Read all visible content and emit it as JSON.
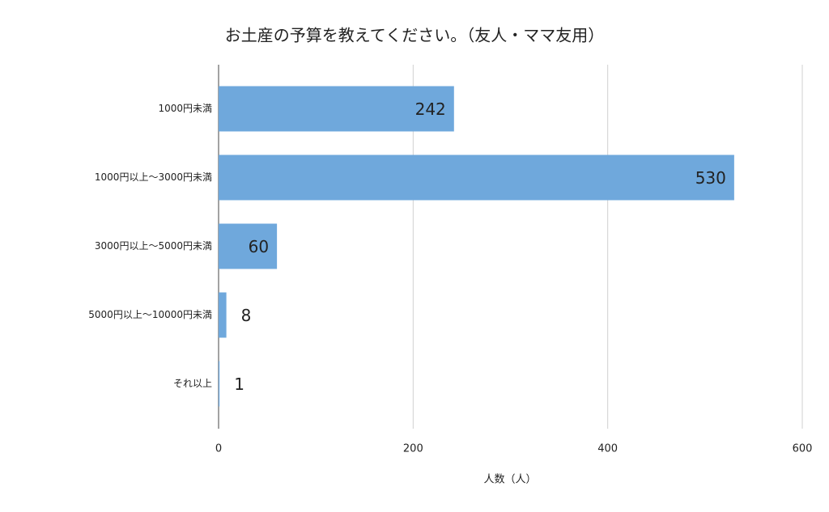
{
  "chart_data": {
    "type": "bar",
    "orientation": "horizontal",
    "title": "お土産の予算を教えてください。（友人・ママ友用）",
    "x_label": "人数（人）",
    "categories": [
      "1000円未満",
      "1000円以上〜3000円未満",
      "3000円以上〜5000円未満",
      "5000円以上〜10000円未満",
      "それ以上"
    ],
    "values": [
      242,
      530,
      60,
      8,
      1
    ],
    "color": "#6fa8dc",
    "xlim": [
      0,
      600
    ],
    "xticks": [
      0,
      200,
      400,
      600
    ],
    "grid": true
  }
}
